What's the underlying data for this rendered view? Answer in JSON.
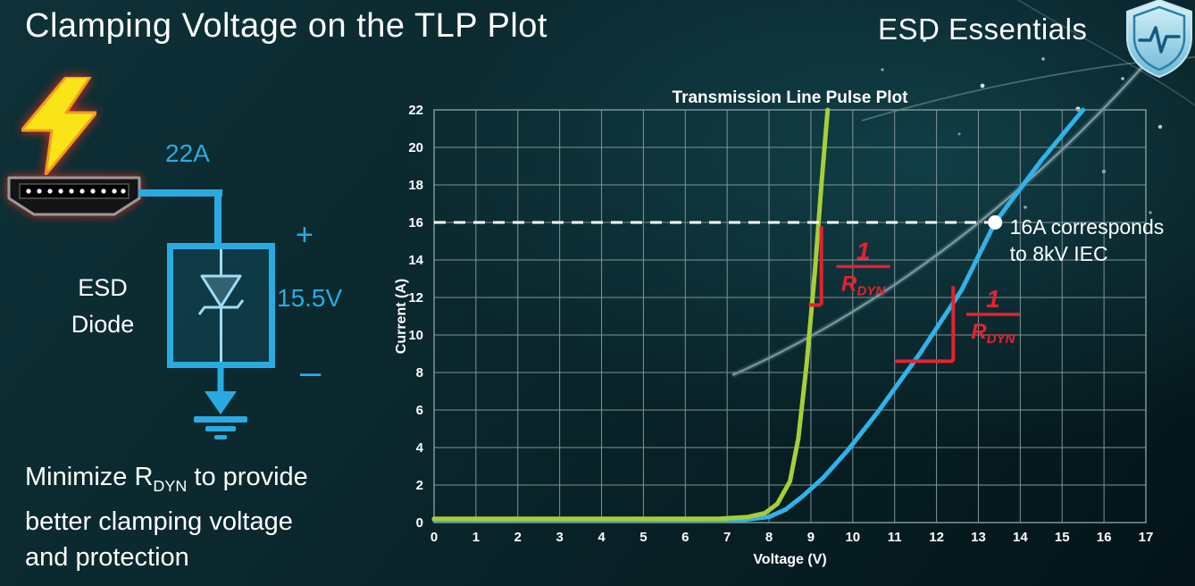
{
  "slide": {
    "title": "Clamping Voltage on the TLP Plot",
    "brand": "ESD Essentials",
    "accent_color": "#29abe2",
    "annotation_color": "#e8212e"
  },
  "diagram": {
    "strike_current_label": "22A",
    "device_label_line1": "ESD",
    "device_label_line2": "Diode",
    "plus_label": "+",
    "clamping_voltage_label": "15.5V",
    "minus_label": "–"
  },
  "note": {
    "line1_pre": "Minimize R",
    "line1_sub": "DYN",
    "line1_post": " to provide",
    "line2": "better clamping voltage",
    "line3": "and protection"
  },
  "chart_data": {
    "type": "line",
    "title": "Transmission Line Pulse Plot",
    "xlabel": "Voltage (V)",
    "ylabel": "Current (A)",
    "xlim": [
      0,
      17
    ],
    "ylim": [
      0,
      22
    ],
    "xtick_step": 1,
    "ytick_step": 2,
    "grid": true,
    "legend": "none",
    "style": {
      "grid_color": "#7f9598",
      "text_color": "#ffffff"
    },
    "series": [
      {
        "name": "higher-rdyn-device-blue",
        "color": "#2fb3e8",
        "width": 5,
        "points": [
          [
            0,
            0.15
          ],
          [
            7.4,
            0.15
          ],
          [
            8.0,
            0.3
          ],
          [
            8.4,
            0.7
          ],
          [
            8.8,
            1.4
          ],
          [
            9.3,
            2.4
          ],
          [
            9.9,
            3.9
          ],
          [
            10.6,
            5.9
          ],
          [
            11.6,
            9.0
          ],
          [
            12.6,
            12.4
          ],
          [
            13.4,
            16.0
          ],
          [
            14.5,
            19.3
          ],
          [
            15.5,
            22.0
          ]
        ]
      },
      {
        "name": "lower-rdyn-device-green",
        "color": "#a6ce39",
        "width": 5,
        "points": [
          [
            0,
            0.2
          ],
          [
            6.8,
            0.2
          ],
          [
            7.5,
            0.3
          ],
          [
            7.9,
            0.5
          ],
          [
            8.2,
            1.0
          ],
          [
            8.5,
            2.2
          ],
          [
            8.7,
            4.5
          ],
          [
            8.9,
            8.5
          ],
          [
            9.1,
            13.5
          ],
          [
            9.25,
            18.0
          ],
          [
            9.4,
            22.0
          ]
        ]
      }
    ],
    "reference": {
      "y": 16,
      "x_end": 13.4,
      "color": "#ffffff",
      "marker": {
        "x": 13.4,
        "y": 16,
        "r": 8
      },
      "label_lines": [
        "16A corresponds",
        "to 8kV IEC"
      ],
      "label_x": 13.75
    },
    "slope_annotations": [
      {
        "color": "#e8212e",
        "segments": [
          [
            9.25,
            15.8,
            9.25,
            11.6
          ],
          [
            8.95,
            11.6,
            9.25,
            11.6
          ]
        ],
        "fraction": {
          "x": 10.25,
          "y": 13.65,
          "numerator": "1",
          "denominator": "R",
          "denominator_sub": "DYN"
        }
      },
      {
        "color": "#e8212e",
        "segments": [
          [
            12.4,
            12.6,
            12.4,
            8.6
          ],
          [
            11.0,
            8.6,
            12.4,
            8.6
          ]
        ],
        "fraction": {
          "x": 13.35,
          "y": 11.1,
          "numerator": "1",
          "denominator": "R",
          "denominator_sub": "DYN"
        }
      }
    ]
  }
}
